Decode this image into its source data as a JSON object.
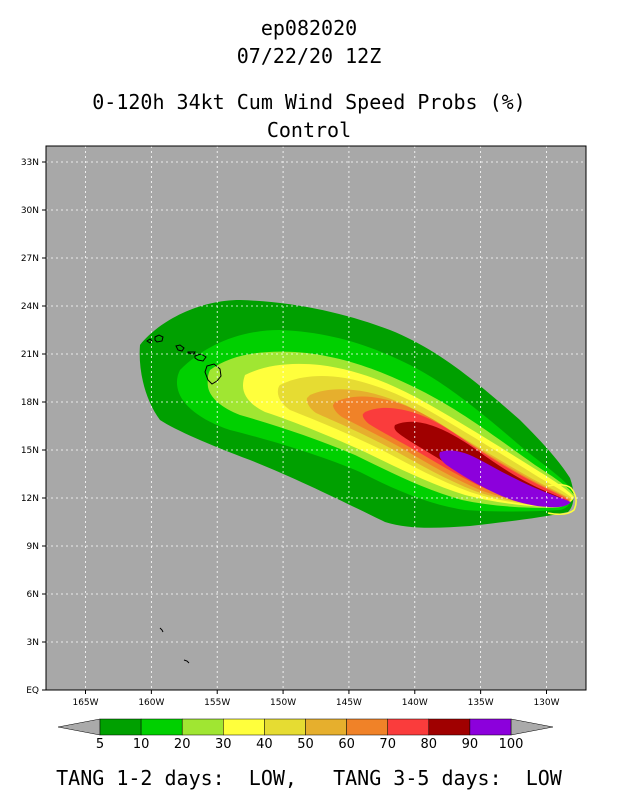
{
  "header": {
    "storm_id": "ep082020",
    "datetime": "07/22/20 12Z",
    "product": "0-120h 34kt Cum Wind Speed Probs (%)",
    "run": "Control"
  },
  "map": {
    "lon_range": [
      -168,
      -127
    ],
    "lat_range": [
      0,
      34
    ],
    "ocean_color": "#a8a8a8",
    "lat_ticks": [
      {
        "value": 0,
        "label": "EQ"
      },
      {
        "value": 3,
        "label": "3N"
      },
      {
        "value": 6,
        "label": "6N"
      },
      {
        "value": 9,
        "label": "9N"
      },
      {
        "value": 12,
        "label": "12N"
      },
      {
        "value": 15,
        "label": "15N"
      },
      {
        "value": 18,
        "label": "18N"
      },
      {
        "value": 21,
        "label": "21N"
      },
      {
        "value": 24,
        "label": "24N"
      },
      {
        "value": 27,
        "label": "27N"
      },
      {
        "value": 30,
        "label": "30N"
      },
      {
        "value": 33,
        "label": "33N"
      }
    ],
    "lon_ticks": [
      {
        "value": -165,
        "label": "165W"
      },
      {
        "value": -160,
        "label": "160W"
      },
      {
        "value": -155,
        "label": "155W"
      },
      {
        "value": -150,
        "label": "150W"
      },
      {
        "value": -145,
        "label": "145W"
      },
      {
        "value": -140,
        "label": "140W"
      },
      {
        "value": -135,
        "label": "135W"
      },
      {
        "value": -130,
        "label": "130W"
      }
    ],
    "grid": true
  },
  "colorbar": {
    "labels": [
      "5",
      "10",
      "20",
      "30",
      "40",
      "50",
      "60",
      "70",
      "80",
      "90",
      "100"
    ],
    "colors": [
      "#00a000",
      "#00d000",
      "#a0e632",
      "#ffff3c",
      "#e6dc32",
      "#e6af2d",
      "#f08228",
      "#fa3c3c",
      "#a00000",
      "#8c00dc"
    ],
    "arrow_color": "#aaaaaa"
  },
  "footer": {
    "text": "TANG 1-2 days:  LOW,   TANG 3-5 days:  LOW"
  }
}
